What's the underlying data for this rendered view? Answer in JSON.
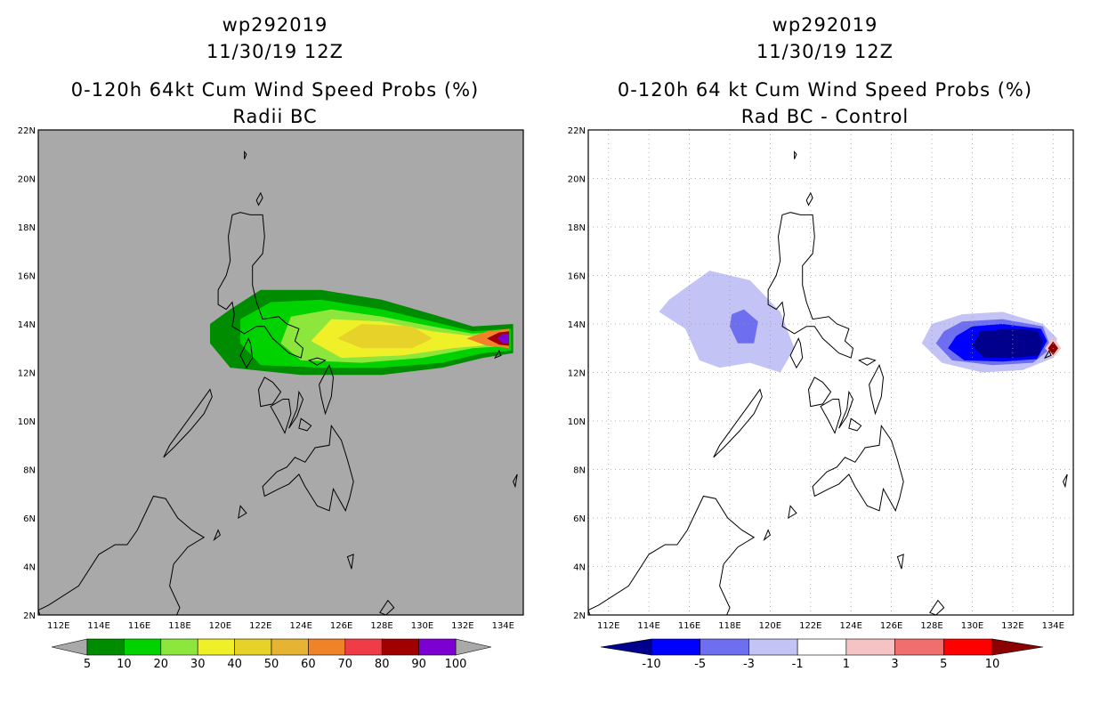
{
  "chart_data": [
    {
      "type": "heatmap",
      "title_lines": [
        "wp292019",
        "11/30/19 12Z",
        "0-120h 64kt Cum Wind Speed Probs (%)",
        "Radii BC"
      ],
      "x_ticks": [
        "112E",
        "114E",
        "116E",
        "118E",
        "120E",
        "122E",
        "124E",
        "126E",
        "128E",
        "130E",
        "132E",
        "134E"
      ],
      "y_ticks": [
        "2N",
        "4N",
        "6N",
        "8N",
        "10N",
        "12N",
        "14N",
        "16N",
        "18N",
        "20N",
        "22N"
      ],
      "xlim": [
        111,
        135
      ],
      "ylim": [
        2,
        22
      ],
      "colorbar": {
        "labels": [
          "5",
          "10",
          "20",
          "30",
          "40",
          "50",
          "60",
          "70",
          "80",
          "90",
          "100"
        ],
        "colors": [
          "#008c00",
          "#00d200",
          "#8ce63c",
          "#f0f028",
          "#e6d228",
          "#e6b432",
          "#f08228",
          "#f03c46",
          "#a00000",
          "#7d00d2"
        ]
      },
      "contours": [
        {
          "level": 5,
          "color": "#008c00",
          "points": [
            [
              119.5,
              13.2
            ],
            [
              120.5,
              12.2
            ],
            [
              124,
              11.9
            ],
            [
              128,
              11.9
            ],
            [
              131,
              12.2
            ],
            [
              133,
              12.6
            ],
            [
              134.5,
              12.8
            ],
            [
              134.5,
              14.0
            ],
            [
              132.5,
              13.9
            ],
            [
              130.5,
              14.4
            ],
            [
              128,
              15.0
            ],
            [
              125,
              15.4
            ],
            [
              122,
              15.4
            ],
            [
              120.5,
              14.6
            ],
            [
              119.5,
              14.0
            ]
          ]
        },
        {
          "level": 10,
          "color": "#00d200",
          "points": [
            [
              121,
              13.2
            ],
            [
              122,
              12.3
            ],
            [
              125,
              12.2
            ],
            [
              128,
              12.2
            ],
            [
              131,
              12.4
            ],
            [
              133,
              12.8
            ],
            [
              134.4,
              12.9
            ],
            [
              134.4,
              13.8
            ],
            [
              132.5,
              13.7
            ],
            [
              130.5,
              14.1
            ],
            [
              128,
              14.6
            ],
            [
              125,
              15.0
            ],
            [
              122.5,
              14.9
            ],
            [
              121,
              14.2
            ]
          ]
        },
        {
          "level": 20,
          "color": "#8ce63c",
          "points": [
            [
              123,
              13.2
            ],
            [
              124,
              12.5
            ],
            [
              127,
              12.4
            ],
            [
              130,
              12.6
            ],
            [
              132.5,
              13.0
            ],
            [
              134.3,
              13.1
            ],
            [
              134.3,
              13.7
            ],
            [
              132.5,
              13.6
            ],
            [
              130.5,
              13.9
            ],
            [
              128,
              14.3
            ],
            [
              125.5,
              14.6
            ],
            [
              123.5,
              14.3
            ]
          ]
        },
        {
          "level": 30,
          "color": "#f0f028",
          "points": [
            [
              124.5,
              13.3
            ],
            [
              126,
              12.6
            ],
            [
              129,
              12.7
            ],
            [
              131.5,
              13.0
            ],
            [
              134.2,
              13.2
            ],
            [
              134.2,
              13.6
            ],
            [
              132.5,
              13.5
            ],
            [
              130.5,
              13.7
            ],
            [
              128,
              14.1
            ],
            [
              125.5,
              14.2
            ]
          ]
        },
        {
          "level": 40,
          "color": "#e6d228",
          "points": [
            [
              125.8,
              13.4
            ],
            [
              127,
              13.0
            ],
            [
              129.5,
              13.0
            ],
            [
              130.5,
              13.4
            ],
            [
              129.5,
              13.9
            ],
            [
              127,
              14.0
            ]
          ]
        },
        {
          "level": 60,
          "color": "#f08228",
          "points": [
            [
              132.2,
              13.4
            ],
            [
              133.2,
              13.1
            ],
            [
              134.3,
              13.0
            ],
            [
              134.3,
              13.8
            ],
            [
              133.2,
              13.7
            ]
          ]
        },
        {
          "level": 80,
          "color": "#a00000",
          "points": [
            [
              133.2,
              13.4
            ],
            [
              133.8,
              13.15
            ],
            [
              134.3,
              13.1
            ],
            [
              134.3,
              13.7
            ],
            [
              133.8,
              13.65
            ]
          ]
        },
        {
          "level": 90,
          "color": "#7d00d2",
          "points": [
            [
              133.7,
              13.4
            ],
            [
              134.0,
              13.2
            ],
            [
              134.3,
              13.2
            ],
            [
              134.3,
              13.6
            ],
            [
              134.0,
              13.6
            ]
          ]
        }
      ]
    },
    {
      "type": "heatmap",
      "title_lines": [
        "wp292019",
        "11/30/19 12Z",
        "0-120h 64 kt Cum Wind Speed Probs (%)",
        "Rad BC - Control"
      ],
      "x_ticks": [
        "112E",
        "114E",
        "116E",
        "118E",
        "120E",
        "122E",
        "124E",
        "126E",
        "128E",
        "130E",
        "132E",
        "134E"
      ],
      "y_ticks": [
        "2N",
        "4N",
        "6N",
        "8N",
        "10N",
        "12N",
        "14N",
        "16N",
        "18N",
        "20N",
        "22N"
      ],
      "xlim": [
        111,
        135
      ],
      "ylim": [
        2,
        22
      ],
      "colorbar": {
        "labels": [
          "-10",
          "-5",
          "-3",
          "-1",
          "1",
          "3",
          "5",
          "10"
        ],
        "colors": [
          "#00008c",
          "#0000ff",
          "#6e6ef0",
          "#c3c3f5",
          "#ffffff",
          "#f5c3c3",
          "#f06e6e",
          "#ff0000",
          "#8c0000"
        ]
      },
      "contours": [
        {
          "level": -1,
          "color": "#c3c3f5",
          "points": [
            [
              114.5,
              14.5
            ],
            [
              115.8,
              13.8
            ],
            [
              116.5,
              12.5
            ],
            [
              117.5,
              12.2
            ],
            [
              119,
              12.4
            ],
            [
              120.5,
              12.0
            ],
            [
              121.2,
              13.0
            ],
            [
              120.5,
              14.5
            ],
            [
              119,
              15.8
            ],
            [
              117,
              16.2
            ],
            [
              116,
              15.6
            ],
            [
              115,
              15.0
            ]
          ]
        },
        {
          "level": -3,
          "color": "#6e6ef0",
          "points": [
            [
              118.0,
              13.9
            ],
            [
              118.4,
              13.2
            ],
            [
              119.2,
              13.2
            ],
            [
              119.4,
              14.1
            ],
            [
              118.7,
              14.6
            ],
            [
              118.1,
              14.4
            ]
          ]
        },
        {
          "level": -1,
          "color": "#c3c3f5",
          "points": [
            [
              127.5,
              13.2
            ],
            [
              128.5,
              12.4
            ],
            [
              130.5,
              12.0
            ],
            [
              132.5,
              12.1
            ],
            [
              134.0,
              12.6
            ],
            [
              134.2,
              13.4
            ],
            [
              133.5,
              14.0
            ],
            [
              131.5,
              14.5
            ],
            [
              129.5,
              14.4
            ],
            [
              128,
              14.0
            ]
          ]
        },
        {
          "level": -3,
          "color": "#6e6ef0",
          "points": [
            [
              128.2,
              13.2
            ],
            [
              129,
              12.5
            ],
            [
              131,
              12.3
            ],
            [
              133,
              12.4
            ],
            [
              133.9,
              13.0
            ],
            [
              133.5,
              13.9
            ],
            [
              131.5,
              14.2
            ],
            [
              129.5,
              14.1
            ],
            [
              128.6,
              13.7
            ]
          ]
        },
        {
          "level": -5,
          "color": "#0000ff",
          "points": [
            [
              128.8,
              13.0
            ],
            [
              129.6,
              12.5
            ],
            [
              131.5,
              12.45
            ],
            [
              133.2,
              12.55
            ],
            [
              133.7,
              13.3
            ],
            [
              133.4,
              13.8
            ],
            [
              131.5,
              14.0
            ],
            [
              130,
              13.9
            ],
            [
              129.2,
              13.5
            ]
          ]
        },
        {
          "level": -10,
          "color": "#00008c",
          "points": [
            [
              130,
              13.1
            ],
            [
              130.6,
              12.6
            ],
            [
              132,
              12.6
            ],
            [
              133.3,
              12.7
            ],
            [
              133.5,
              13.3
            ],
            [
              133.2,
              13.75
            ],
            [
              131.8,
              13.8
            ],
            [
              130.4,
              13.7
            ]
          ]
        },
        {
          "level": 3,
          "color": "#f5c3c3",
          "points": [
            [
              133.6,
              13.0
            ],
            [
              134.0,
              12.6
            ],
            [
              134.4,
              13.0
            ],
            [
              134.0,
              13.45
            ]
          ]
        },
        {
          "level": 10,
          "color": "#8c0000",
          "points": [
            [
              133.75,
              13.0
            ],
            [
              134.0,
              12.72
            ],
            [
              134.25,
              13.0
            ],
            [
              134.0,
              13.28
            ]
          ]
        }
      ]
    }
  ]
}
